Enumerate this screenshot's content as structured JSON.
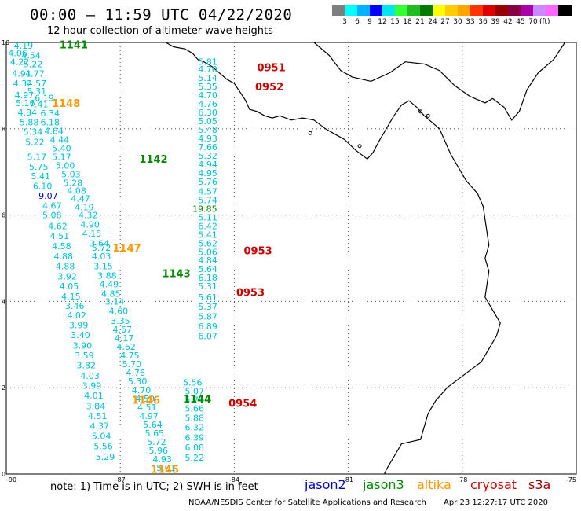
{
  "title": "00:00 – 11:59 UTC 04/22/2020",
  "subtitle": "12 hour collection of altimeter wave heights",
  "colorbar": {
    "colors": [
      "#7f7f7f",
      "#00ffff",
      "#00b2ff",
      "#0000ff",
      "#00e5ee",
      "#33ff33",
      "#22bb22",
      "#007a00",
      "#ffff00",
      "#ffcc00",
      "#ffa500",
      "#ff3300",
      "#dd0000",
      "#990000",
      "#880044",
      "#aa00aa",
      "#cc88ff",
      "#ff66ff",
      "#000000"
    ],
    "labels": [
      "3",
      "6",
      "9",
      "12",
      "15",
      "18",
      "21",
      "24",
      "27",
      "30",
      "33",
      "36",
      "39",
      "42",
      "45",
      "70"
    ],
    "unit": "(ft)"
  },
  "axes": {
    "x_ticks": [
      "-90",
      "-87",
      "-84",
      "-81",
      "-78",
      "-75"
    ],
    "y_ticks": [
      "0",
      "2",
      "4",
      "6",
      "8",
      "10"
    ]
  },
  "footer": {
    "note": "note:  1) Time is in UTC;  2) SWH is in feet",
    "satellites": [
      {
        "name": "jason2",
        "color": "#0000cc"
      },
      {
        "name": "jason3",
        "color": "#008800"
      },
      {
        "name": "altika",
        "color": "#ff9900"
      },
      {
        "name": "cryosat",
        "color": "#cc0000"
      },
      {
        "name": "s3a",
        "color": "#990000"
      }
    ],
    "credit": "NOAA/NESDIS Center for Satellite Applications and Research",
    "timestamp": "Apr 23 12:27:17 UTC 2020"
  },
  "tracks": [
    {
      "pass": "1141",
      "color": "#008800",
      "points": [
        {
          "lon": -89.8,
          "lat": 9.93,
          "v": "4.19"
        },
        {
          "lon": -89.95,
          "lat": 9.75,
          "v": "4.06"
        },
        {
          "lon": -89.6,
          "lat": 9.7,
          "v": "4.54"
        },
        {
          "lon": -89.9,
          "lat": 9.55,
          "v": "4.22"
        },
        {
          "lon": -89.55,
          "lat": 9.5,
          "v": "5.22"
        },
        {
          "lon": -89.85,
          "lat": 9.28,
          "v": "4.91"
        },
        {
          "lon": -89.5,
          "lat": 9.28,
          "v": "4.77"
        },
        {
          "lon": -89.82,
          "lat": 9.05,
          "v": "4.32"
        },
        {
          "lon": -89.45,
          "lat": 9.05,
          "v": "4.57"
        },
        {
          "lon": -89.45,
          "lat": 8.87,
          "v": "5.31"
        },
        {
          "lon": -89.78,
          "lat": 8.78,
          "v": "4.97"
        },
        {
          "lon": -89.25,
          "lat": 8.72,
          "v": "6.19"
        },
        {
          "lon": -89.75,
          "lat": 8.6,
          "v": "5.16"
        },
        {
          "lon": -89.4,
          "lat": 8.57,
          "v": "7.41"
        },
        {
          "lon": -89.7,
          "lat": 8.38,
          "v": "4.84"
        },
        {
          "lon": -89.1,
          "lat": 8.36,
          "v": "6.34"
        },
        {
          "lon": -89.65,
          "lat": 8.15,
          "v": "5.88"
        },
        {
          "lon": -89.1,
          "lat": 8.15,
          "v": "6.18"
        },
        {
          "lon": -89.55,
          "lat": 7.93,
          "v": "5.34"
        },
        {
          "lon": -89.0,
          "lat": 7.95,
          "v": "4.84"
        },
        {
          "lon": -88.85,
          "lat": 7.75,
          "v": "4.44"
        },
        {
          "lon": -89.5,
          "lat": 7.7,
          "v": "5.22"
        },
        {
          "lon": -88.8,
          "lat": 7.55,
          "v": "5.40"
        },
        {
          "lon": -89.45,
          "lat": 7.35,
          "v": "5.17"
        },
        {
          "lon": -88.8,
          "lat": 7.35,
          "v": "5.17"
        },
        {
          "lon": -88.7,
          "lat": 7.15,
          "v": "5.00"
        },
        {
          "lon": -89.4,
          "lat": 7.12,
          "v": "5.75"
        },
        {
          "lon": -88.55,
          "lat": 6.95,
          "v": "5.03"
        },
        {
          "lon": -89.35,
          "lat": 6.9,
          "v": "5.41"
        },
        {
          "lon": -88.5,
          "lat": 6.75,
          "v": "5.28"
        },
        {
          "lon": -89.3,
          "lat": 6.68,
          "v": "6.10"
        },
        {
          "lon": -88.4,
          "lat": 6.57,
          "v": "4.08"
        },
        {
          "lon": -88.3,
          "lat": 6.38,
          "v": "4.47"
        },
        {
          "lon": -89.15,
          "lat": 6.45,
          "v": "9.07",
          "color": "#0000cc"
        },
        {
          "lon": -89.05,
          "lat": 6.22,
          "v": "4.67"
        },
        {
          "lon": -88.2,
          "lat": 6.18,
          "v": "4.19"
        },
        {
          "lon": -89.05,
          "lat": 6.0,
          "v": "5.08"
        },
        {
          "lon": -88.1,
          "lat": 6.0,
          "v": "4.32"
        },
        {
          "lon": -88.9,
          "lat": 5.75,
          "v": "4.62"
        },
        {
          "lon": -88.05,
          "lat": 5.78,
          "v": "4.90"
        },
        {
          "lon": -88.85,
          "lat": 5.52,
          "v": "4.51"
        },
        {
          "lon": -88.0,
          "lat": 5.57,
          "v": "4.15"
        },
        {
          "lon": -87.8,
          "lat": 5.35,
          "v": "3.64"
        },
        {
          "lon": -88.8,
          "lat": 5.28,
          "v": "4.58"
        },
        {
          "lon": -87.75,
          "lat": 5.25,
          "v": "5.72"
        },
        {
          "lon": -88.75,
          "lat": 5.05,
          "v": "4.88"
        },
        {
          "lon": -87.75,
          "lat": 5.05,
          "v": "4.03"
        },
        {
          "lon": -88.7,
          "lat": 4.82,
          "v": "4.88"
        },
        {
          "lon": -87.7,
          "lat": 4.82,
          "v": "3.15"
        },
        {
          "lon": -88.65,
          "lat": 4.58,
          "v": "3.92"
        },
        {
          "lon": -87.6,
          "lat": 4.6,
          "v": "3.88"
        },
        {
          "lon": -87.55,
          "lat": 4.4,
          "v": "4.49"
        },
        {
          "lon": -88.6,
          "lat": 4.35,
          "v": "4.05"
        },
        {
          "lon": -87.5,
          "lat": 4.18,
          "v": "4.85"
        },
        {
          "lon": -88.55,
          "lat": 4.12,
          "v": "4.15"
        },
        {
          "lon": -87.4,
          "lat": 4.0,
          "v": "3.14"
        }
      ]
    },
    {
      "pass": "1142",
      "color": "#008800",
      "points": []
    },
    {
      "pass": "1143",
      "color": "#008800",
      "points": []
    },
    {
      "pass": "1148",
      "color": "#ff9900",
      "points": []
    },
    {
      "pass": "1147",
      "color": "#ff9900",
      "points": []
    },
    {
      "pass": "1146",
      "color": "#ff9900",
      "points": [
        {
          "lon": -88.45,
          "lat": 3.9,
          "v": "3.46"
        },
        {
          "lon": -88.4,
          "lat": 3.68,
          "v": "4.02"
        },
        {
          "lon": -88.35,
          "lat": 3.45,
          "v": "3.99"
        },
        {
          "lon": -88.3,
          "lat": 3.22,
          "v": "3.40"
        },
        {
          "lon": -88.25,
          "lat": 2.98,
          "v": "3.90"
        },
        {
          "lon": -88.2,
          "lat": 2.75,
          "v": "3.59"
        },
        {
          "lon": -88.15,
          "lat": 2.52,
          "v": "3.82"
        },
        {
          "lon": -88.05,
          "lat": 2.28,
          "v": "4.03"
        },
        {
          "lon": -88.0,
          "lat": 2.05,
          "v": "3.99"
        },
        {
          "lon": -87.95,
          "lat": 1.82,
          "v": "4.01"
        },
        {
          "lon": -87.9,
          "lat": 1.58,
          "v": "3.84"
        },
        {
          "lon": -87.85,
          "lat": 1.35,
          "v": "4.51"
        },
        {
          "lon": -87.8,
          "lat": 1.12,
          "v": "4.37"
        },
        {
          "lon": -87.75,
          "lat": 0.88,
          "v": "5.04"
        },
        {
          "lon": -87.7,
          "lat": 0.65,
          "v": "5.56"
        },
        {
          "lon": -87.65,
          "lat": 0.4,
          "v": "5.29"
        }
      ]
    },
    {
      "pass": "1145",
      "color": "#ff9900",
      "points": [
        {
          "lon": -87.3,
          "lat": 3.78,
          "v": "4.60"
        },
        {
          "lon": -87.25,
          "lat": 3.55,
          "v": "3.35"
        },
        {
          "lon": -87.2,
          "lat": 3.35,
          "v": "4.67"
        },
        {
          "lon": -87.15,
          "lat": 3.15,
          "v": "4.17"
        },
        {
          "lon": -87.1,
          "lat": 2.95,
          "v": "4.62"
        },
        {
          "lon": -87.0,
          "lat": 2.75,
          "v": "4.75"
        },
        {
          "lon": -86.95,
          "lat": 2.55,
          "v": "5.70"
        },
        {
          "lon": -86.85,
          "lat": 2.35,
          "v": "4.76"
        },
        {
          "lon": -86.8,
          "lat": 2.15,
          "v": "5.30"
        },
        {
          "lon": -86.7,
          "lat": 1.95,
          "v": "4.70"
        },
        {
          "lon": -86.6,
          "lat": 1.75,
          "v": "4.59"
        },
        {
          "lon": -86.55,
          "lat": 1.55,
          "v": "4.51"
        },
        {
          "lon": -86.5,
          "lat": 1.35,
          "v": "4.97"
        },
        {
          "lon": -86.4,
          "lat": 1.15,
          "v": "5.64"
        },
        {
          "lon": -86.35,
          "lat": 0.95,
          "v": "5.65"
        },
        {
          "lon": -86.3,
          "lat": 0.75,
          "v": "5.72"
        },
        {
          "lon": -86.25,
          "lat": 0.55,
          "v": "5.96"
        },
        {
          "lon": -86.15,
          "lat": 0.35,
          "v": "4.93"
        },
        {
          "lon": -86.05,
          "lat": 0.15,
          "v": "5.01"
        }
      ]
    },
    {
      "pass": "1144",
      "color": "#008800",
      "points": [
        {
          "lon": -85.35,
          "lat": 2.12,
          "v": "5.56"
        },
        {
          "lon": -85.3,
          "lat": 1.92,
          "v": "5.07"
        },
        {
          "lon": -85.3,
          "lat": 1.72,
          "v": "5.74"
        },
        {
          "lon": -85.3,
          "lat": 1.52,
          "v": "5.66"
        },
        {
          "lon": -85.3,
          "lat": 1.3,
          "v": "5.88"
        },
        {
          "lon": -85.3,
          "lat": 1.08,
          "v": "6.32"
        },
        {
          "lon": -85.3,
          "lat": 0.85,
          "v": "6.39"
        },
        {
          "lon": -85.3,
          "lat": 0.62,
          "v": "6.08"
        },
        {
          "lon": -85.3,
          "lat": 0.38,
          "v": "5.22"
        }
      ]
    },
    {
      "pass": "0951",
      "color": "#cc0000",
      "points": [
        {
          "lon": -84.95,
          "lat": 9.55,
          "v": "5.81"
        },
        {
          "lon": -84.95,
          "lat": 9.38,
          "v": "4.70"
        },
        {
          "lon": -84.95,
          "lat": 9.18,
          "v": "5.14"
        },
        {
          "lon": -84.95,
          "lat": 8.98,
          "v": "5.35"
        },
        {
          "lon": -84.95,
          "lat": 8.78,
          "v": "4.70"
        },
        {
          "lon": -84.95,
          "lat": 8.58,
          "v": "4.76"
        },
        {
          "lon": -84.95,
          "lat": 8.38,
          "v": "6.30"
        },
        {
          "lon": -84.95,
          "lat": 8.18,
          "v": "5.05"
        },
        {
          "lon": -84.95,
          "lat": 7.98,
          "v": "5.48"
        },
        {
          "lon": -84.95,
          "lat": 7.78,
          "v": "4.93"
        },
        {
          "lon": -84.95,
          "lat": 7.58,
          "v": "7.66"
        },
        {
          "lon": -84.95,
          "lat": 7.38,
          "v": "5.32"
        },
        {
          "lon": -84.95,
          "lat": 7.18,
          "v": "4.94"
        },
        {
          "lon": -84.95,
          "lat": 6.98,
          "v": "4.95"
        },
        {
          "lon": -84.95,
          "lat": 6.78,
          "v": "5.76"
        },
        {
          "lon": -84.95,
          "lat": 6.55,
          "v": "4.57"
        },
        {
          "lon": -84.95,
          "lat": 6.35,
          "v": "5.74"
        }
      ]
    },
    {
      "pass": "0952",
      "color": "#cc0000",
      "points": []
    },
    {
      "pass": "0953",
      "color": "#cc0000",
      "points": [
        {
          "lon": -85.1,
          "lat": 6.15,
          "v": "19.85",
          "color": "#008800"
        },
        {
          "lon": -84.95,
          "lat": 5.95,
          "v": "5.11"
        },
        {
          "lon": -84.95,
          "lat": 5.75,
          "v": "6.42"
        },
        {
          "lon": -84.95,
          "lat": 5.55,
          "v": "5.41"
        },
        {
          "lon": -84.95,
          "lat": 5.35,
          "v": "5.62"
        },
        {
          "lon": -84.95,
          "lat": 5.15,
          "v": "5.06"
        },
        {
          "lon": -84.95,
          "lat": 4.95,
          "v": "4.84"
        },
        {
          "lon": -84.95,
          "lat": 4.75,
          "v": "5.64"
        },
        {
          "lon": -84.95,
          "lat": 4.55,
          "v": "6.18"
        },
        {
          "lon": -84.95,
          "lat": 4.35,
          "v": "5.31"
        },
        {
          "lon": -84.95,
          "lat": 4.1,
          "v": "5.61"
        },
        {
          "lon": -84.95,
          "lat": 3.88,
          "v": "5.37"
        },
        {
          "lon": -84.95,
          "lat": 3.65,
          "v": "5.87"
        },
        {
          "lon": -84.95,
          "lat": 3.42,
          "v": "6.89"
        },
        {
          "lon": -84.95,
          "lat": 3.2,
          "v": "6.07"
        }
      ]
    },
    {
      "pass": "0954",
      "color": "#cc0000",
      "points": []
    }
  ],
  "pass_labels": [
    {
      "text": "1141",
      "color": "#008800",
      "lon": -88.6,
      "lat": 9.95
    },
    {
      "text": "1148",
      "color": "#ff9900",
      "lon": -88.8,
      "lat": 8.6
    },
    {
      "text": "1142",
      "color": "#008800",
      "lon": -86.5,
      "lat": 7.3
    },
    {
      "text": "1147",
      "color": "#ff9900",
      "lon": -87.2,
      "lat": 5.25
    },
    {
      "text": "1143",
      "color": "#008800",
      "lon": -85.9,
      "lat": 4.65
    },
    {
      "text": "1146",
      "color": "#ff9900",
      "lon": -86.7,
      "lat": 1.72
    },
    {
      "text": "1144",
      "color": "#008800",
      "lon": -85.35,
      "lat": 1.75
    },
    {
      "text": "1145",
      "color": "#ff9900",
      "lon": -86.2,
      "lat": 0.12
    },
    {
      "text": "0951",
      "color": "#cc0000",
      "lon": -83.4,
      "lat": 9.43
    },
    {
      "text": "0952",
      "color": "#cc0000",
      "lon": -83.45,
      "lat": 8.98
    },
    {
      "text": "0953",
      "color": "#cc0000",
      "lon": -83.75,
      "lat": 5.18
    },
    {
      "text": "0953",
      "color": "#cc0000",
      "lon": -83.95,
      "lat": 4.22
    },
    {
      "text": "0954",
      "color": "#cc0000",
      "lon": -84.15,
      "lat": 1.65
    }
  ]
}
